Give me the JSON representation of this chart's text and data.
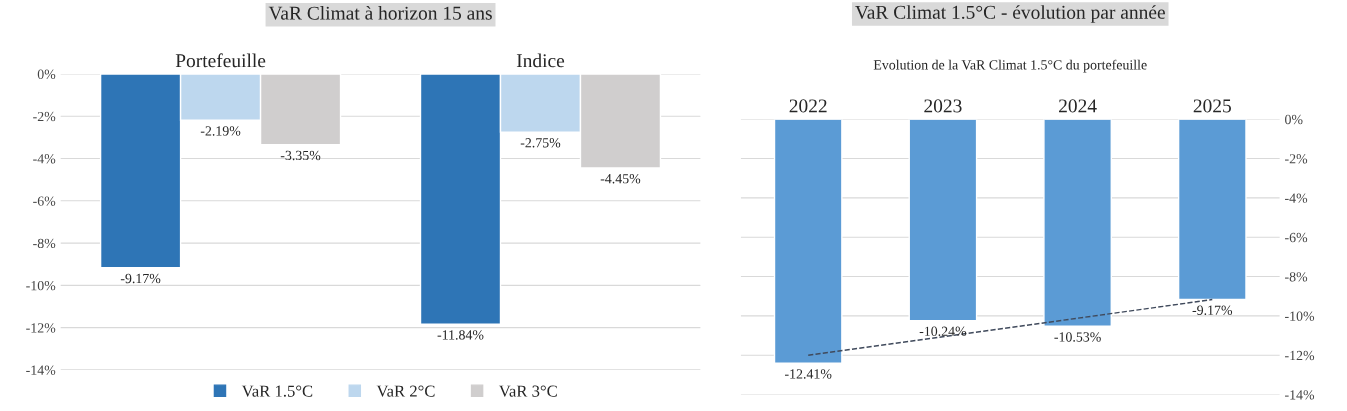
{
  "chart_data": [
    {
      "type": "bar",
      "title": "VaR Climat à horizon 15 ans",
      "categories": [
        "Portefeuille",
        "Indice"
      ],
      "series": [
        {
          "name": "VaR 1.5°C",
          "color": "#2e75b6",
          "values": [
            -9.17,
            -11.84
          ],
          "value_labels": [
            "-9.17%",
            "-11.84%"
          ]
        },
        {
          "name": "VaR 2°C",
          "color": "#bdd7ee",
          "values": [
            -2.19,
            -2.75
          ],
          "value_labels": [
            "-2.19%",
            "-2.75%"
          ]
        },
        {
          "name": "VaR 3°C",
          "color": "#d0cece",
          "values": [
            -3.35,
            -4.45
          ],
          "value_labels": [
            "-3.35%",
            "-4.45%"
          ]
        }
      ],
      "ylim": [
        -14,
        0
      ],
      "yticks": [
        {
          "value": 0,
          "label": "0%"
        },
        {
          "value": -2,
          "label": "-2%"
        },
        {
          "value": -4,
          "label": "-4%"
        },
        {
          "value": -6,
          "label": "-6%"
        },
        {
          "value": -8,
          "label": "-8%"
        },
        {
          "value": -10,
          "label": "-10%"
        },
        {
          "value": -12,
          "label": "-12%"
        },
        {
          "value": -14,
          "label": "-14%"
        }
      ],
      "grid": "y",
      "legend": "bottom"
    },
    {
      "type": "bar",
      "title": "VaR Climat 1.5°C - évolution par année",
      "subtitle": "Evolution de la VaR Climat 1.5°C du portefeuille",
      "categories": [
        "2022",
        "2023",
        "2024",
        "2025"
      ],
      "series": [
        {
          "color": "#5b9bd5",
          "axis": "y2",
          "values": [
            -12.41,
            -10.24,
            -10.53,
            -9.17
          ],
          "value_labels": [
            "-12.41%",
            "-10.24%",
            "-10.53%",
            "-9.17%"
          ]
        },
        {
          "type": "line",
          "axis": "y2",
          "color": "#404a5c",
          "line_style": "dashed",
          "values": [
            -12.0,
            -11.06,
            -10.12,
            -9.17
          ]
        }
      ],
      "y2lim": [
        -14,
        0
      ],
      "y2ticks": [
        {
          "value": 0,
          "label": "0%"
        },
        {
          "value": -2,
          "label": "-2%"
        },
        {
          "value": -4,
          "label": "-4%"
        },
        {
          "value": -6,
          "label": "-6%"
        },
        {
          "value": -8,
          "label": "-8%"
        },
        {
          "value": -10,
          "label": "-10%"
        },
        {
          "value": -12,
          "label": "-12%"
        },
        {
          "value": -14,
          "label": "-14%"
        }
      ],
      "grid": "y"
    }
  ]
}
